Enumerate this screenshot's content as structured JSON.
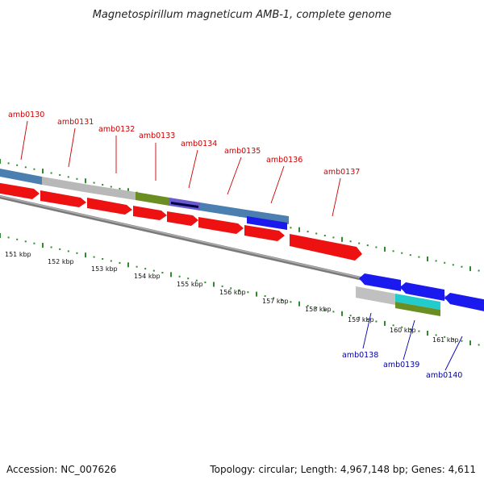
{
  "title": "Magnetospirillum magneticum AMB-1, complete genome",
  "accession": "Accession: NC_007626",
  "topology": "Topology: circular; Length: 4,967,148 bp; Genes: 4,611",
  "colors": {
    "backbone": "#8a8a8a",
    "tick": "#2e8b2e",
    "gene_red": "#ee1111",
    "gene_blue": "#1a1aee",
    "label_red": "#cc0000",
    "label_blue": "#0000aa"
  },
  "kbp_labels": [
    "151 kbp",
    "152 kbp",
    "153 kbp",
    "154 kbp",
    "155 kbp",
    "156 kbp",
    "157 kbp",
    "158 kbp",
    "159 kbp",
    "160 kbp",
    "161 kbp"
  ],
  "genes_top": [
    {
      "label": "amb0130"
    },
    {
      "label": "amb0131"
    },
    {
      "label": "amb0132"
    },
    {
      "label": "amb0133"
    },
    {
      "label": "amb0134"
    },
    {
      "label": "amb0135"
    },
    {
      "label": "amb0136"
    },
    {
      "label": "amb0137"
    }
  ],
  "genes_bottom": [
    {
      "label": "amb0138"
    },
    {
      "label": "amb0139"
    },
    {
      "label": "amb0140"
    }
  ]
}
